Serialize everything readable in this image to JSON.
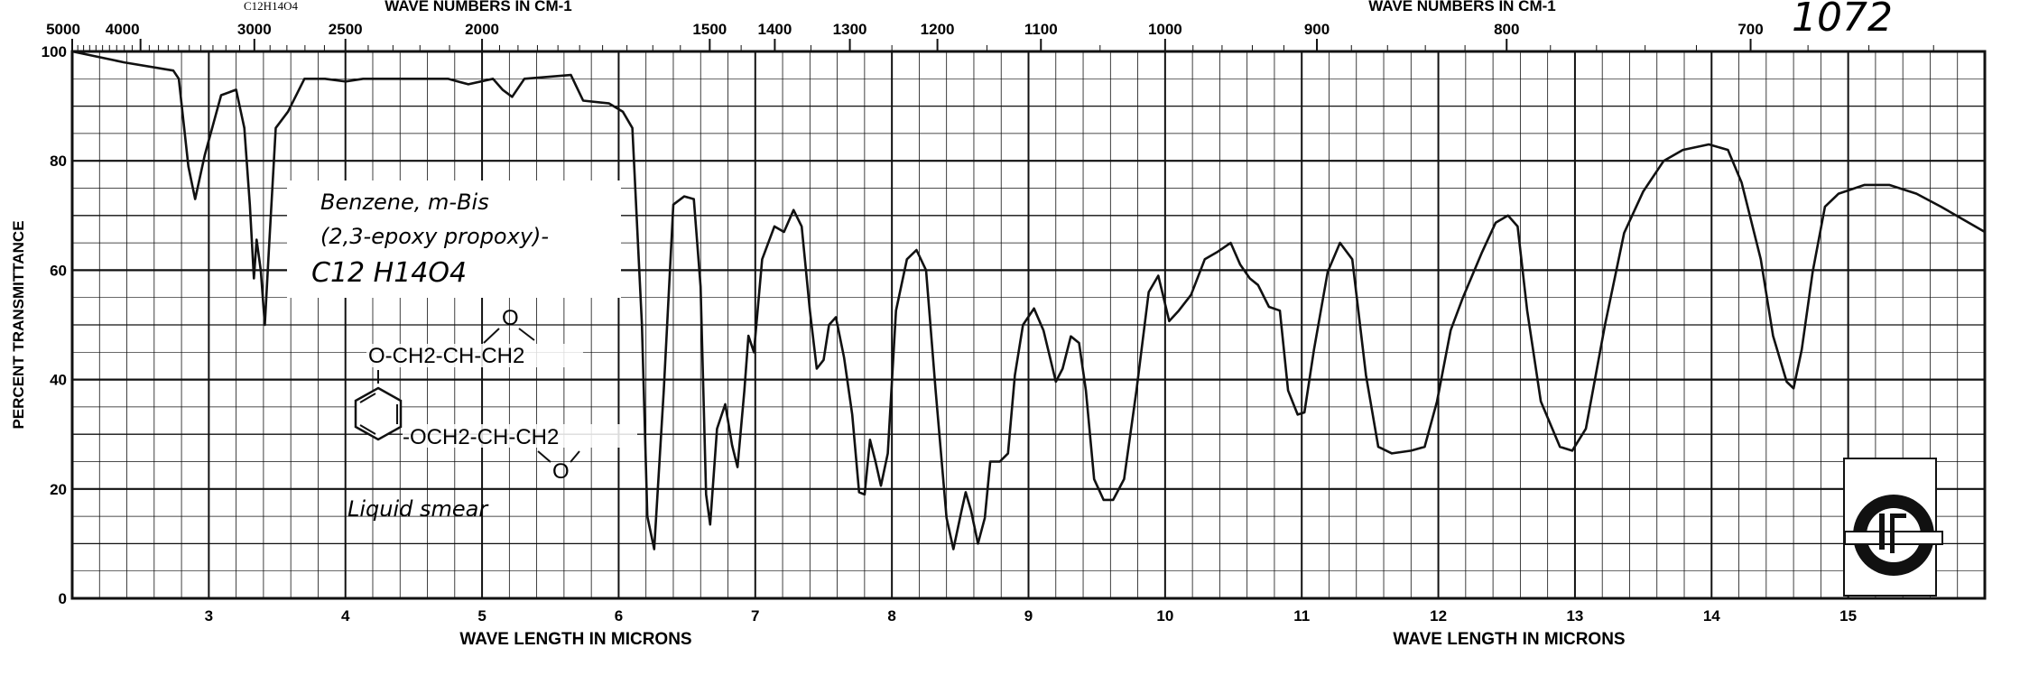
{
  "chart_data": {
    "type": "line",
    "title": "Benzene, m-Bis (2,3-epoxy propoxy)-",
    "formula_header": "C12H14O4",
    "catalog_number": "1072",
    "xlabel": "WAVE LENGTH IN MICRONS",
    "x2label": "WAVE NUMBERS IN CM-1",
    "ylabel": "PERCENT TRANSMITTANCE",
    "xlim": [
      2,
      16
    ],
    "ylim": [
      0,
      100
    ],
    "grid": true,
    "x_ticks": [
      "3",
      "4",
      "5",
      "6",
      "7",
      "8",
      "9",
      "10",
      "11",
      "12",
      "13",
      "14",
      "15"
    ],
    "y_ticks": [
      "0",
      "20",
      "40",
      "60",
      "80",
      "100"
    ],
    "top_ticks": [
      "5000",
      "4000",
      "3000",
      "2500",
      "2000",
      "1500",
      "1400",
      "1300",
      "1200",
      "1100",
      "1000",
      "900",
      "800",
      "700"
    ],
    "annotation": {
      "line1": "Benzene, m-Bis",
      "line2": "(2,3-epoxy propoxy)-",
      "formula": "C12 H14O4",
      "structure_top": "O-CH2-CH-CH2",
      "structure_bottom": "-OCH2-CH-CH2",
      "epoxide_o": "O",
      "sample": "Liquid smear"
    },
    "series": [
      {
        "name": "spectrum",
        "x": [
          2.0,
          2.38,
          2.74,
          2.78,
          2.85,
          2.9,
          2.97,
          3.09,
          3.2,
          3.26,
          3.3,
          3.33,
          3.35,
          3.38,
          3.41,
          3.44,
          3.49,
          3.58,
          3.7,
          3.85,
          4.0,
          4.13,
          4.32,
          4.75,
          4.9,
          5.08,
          5.15,
          5.22,
          5.31,
          5.65,
          5.74,
          5.93,
          6.03,
          6.1,
          6.17,
          6.21,
          6.26,
          6.33,
          6.4,
          6.48,
          6.55,
          6.6,
          6.64,
          6.67,
          6.72,
          6.78,
          6.83,
          6.87,
          6.92,
          6.95,
          6.99,
          7.05,
          7.14,
          7.21,
          7.28,
          7.34,
          7.4,
          7.45,
          7.5,
          7.54,
          7.59,
          7.65,
          7.71,
          7.76,
          7.8,
          7.84,
          7.88,
          7.92,
          7.97,
          8.03,
          8.11,
          8.18,
          8.25,
          8.32,
          8.4,
          8.45,
          8.51,
          8.54,
          8.58,
          8.63,
          8.68,
          8.72,
          8.79,
          8.85,
          8.9,
          8.96,
          9.04,
          9.11,
          9.2,
          9.25,
          9.31,
          9.37,
          9.42,
          9.48,
          9.55,
          9.62,
          9.7,
          9.79,
          9.88,
          9.95,
          10.03,
          10.1,
          10.19,
          10.29,
          10.38,
          10.48,
          10.55,
          10.62,
          10.68,
          10.76,
          10.84,
          10.9,
          10.97,
          11.02,
          11.09,
          11.19,
          11.28,
          11.37,
          11.47,
          11.56,
          11.66,
          11.8,
          11.9,
          11.99,
          12.09,
          12.18,
          12.32,
          12.42,
          12.51,
          12.58,
          12.65,
          12.75,
          12.89,
          12.98,
          13.08,
          13.22,
          13.36,
          13.5,
          13.65,
          13.79,
          13.98,
          14.12,
          14.22,
          14.36,
          14.45,
          14.55,
          14.6,
          14.66,
          14.74,
          14.83,
          14.93,
          15.12,
          15.3,
          15.5,
          15.68,
          16.0
        ],
        "y": [
          100,
          98,
          96.5,
          95,
          79,
          73,
          81,
          92,
          93,
          86,
          72,
          58.5,
          65.6,
          60,
          50,
          64,
          86,
          89,
          95,
          95,
          94.5,
          95,
          95,
          95,
          94,
          95,
          93,
          91.7,
          95,
          95.7,
          91,
          90.5,
          89,
          86,
          50,
          15,
          9,
          38,
          72,
          73.5,
          73,
          57,
          19,
          13.5,
          31,
          35.5,
          28,
          24,
          38,
          48,
          45,
          62,
          68,
          67,
          71,
          68,
          52.6,
          42,
          43.6,
          50,
          51.4,
          44,
          33.6,
          19.4,
          19,
          29,
          25,
          20.6,
          26.5,
          52.6,
          62,
          63.7,
          60,
          38,
          14.7,
          9,
          16,
          19.4,
          16,
          10,
          14.7,
          25,
          25,
          26.5,
          40.8,
          50,
          53,
          49,
          39.6,
          42,
          47.9,
          46.7,
          38,
          21.8,
          18,
          18,
          21.8,
          38,
          56,
          59,
          50.7,
          52.6,
          55.5,
          62,
          63.3,
          65,
          61,
          58.5,
          57.3,
          53.3,
          52.6,
          38,
          33.6,
          34,
          45.5,
          59.7,
          65,
          62,
          40.8,
          27.7,
          26.5,
          27,
          27.7,
          36,
          49,
          55,
          63.3,
          68.7,
          70,
          68,
          52.6,
          36,
          27.7,
          27,
          31,
          50,
          66.8,
          74.4,
          80,
          82,
          83,
          82,
          76,
          62,
          48,
          39.6,
          38.4,
          45.5,
          59.7,
          71.6,
          74,
          75.6,
          75.6,
          74,
          71.6,
          67
        ]
      }
    ]
  }
}
